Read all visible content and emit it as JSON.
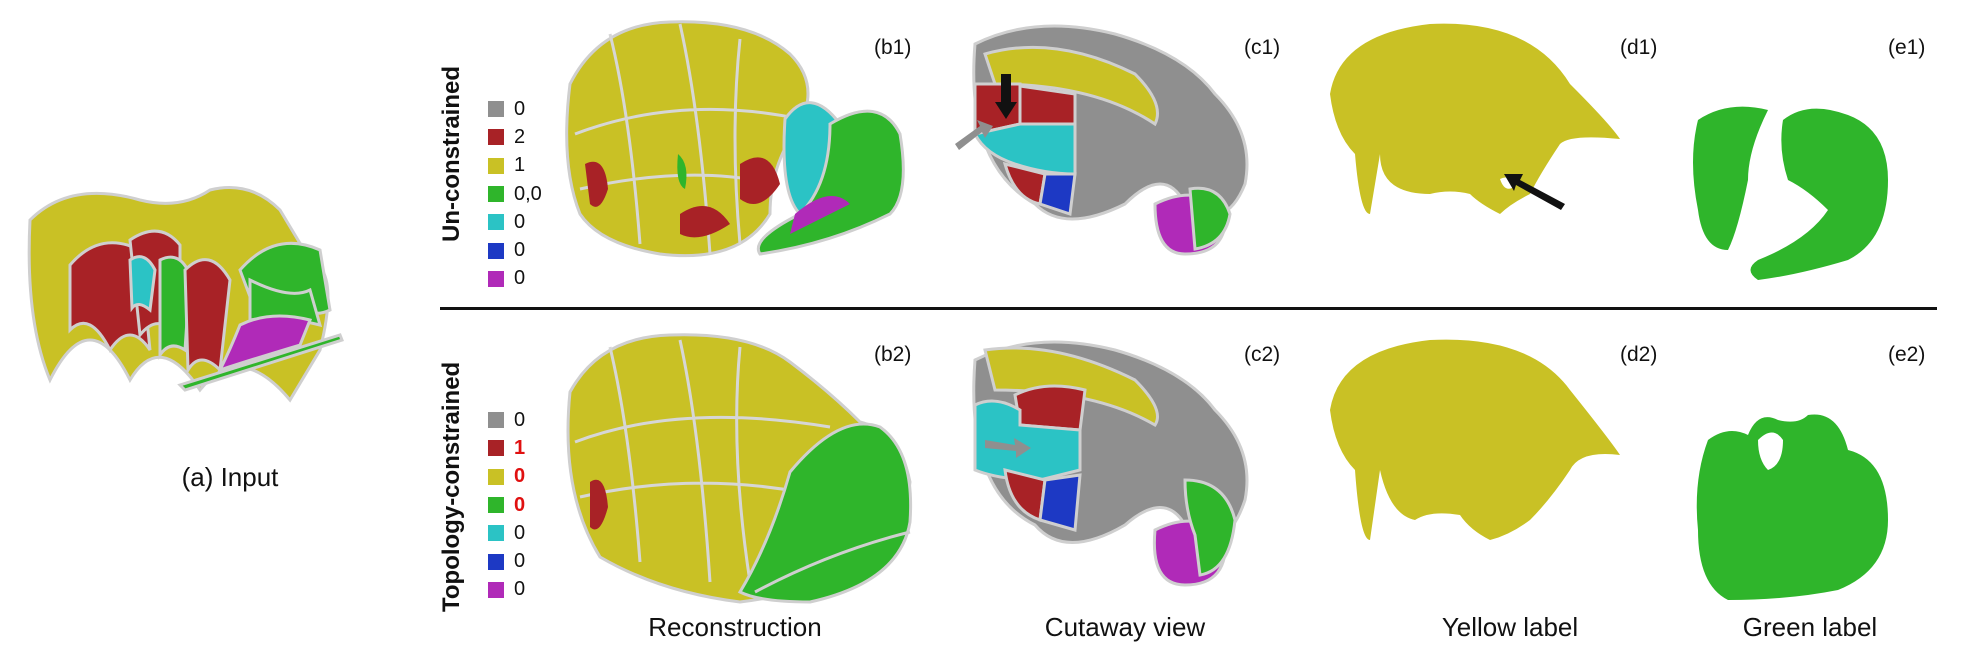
{
  "input_caption": "(a) Input",
  "rows": [
    {
      "label": "Un-constrained",
      "legend": [
        {
          "value": "0",
          "color": "#8c8c8c",
          "highlight": false
        },
        {
          "value": "2",
          "color": "#b02226",
          "highlight": false
        },
        {
          "value": "1",
          "color": "#c4bd1e",
          "highlight": false
        },
        {
          "value": "0,0",
          "color": "#2fb52b",
          "highlight": false
        },
        {
          "value": "0",
          "color": "#26c3c5",
          "highlight": false
        },
        {
          "value": "0",
          "color": "#1d39c4",
          "highlight": false
        },
        {
          "value": "0",
          "color": "#a42bbe",
          "highlight": false
        }
      ],
      "panels": [
        "(b1)",
        "(c1)",
        "(d1)",
        "(e1)"
      ]
    },
    {
      "label": "Topology-constrained",
      "legend": [
        {
          "value": "0",
          "color": "#8c8c8c",
          "highlight": false
        },
        {
          "value": "1",
          "color": "#b02226",
          "highlight": true
        },
        {
          "value": "0",
          "color": "#c4bd1e",
          "highlight": true
        },
        {
          "value": "0",
          "color": "#2fb52b",
          "highlight": true
        },
        {
          "value": "0",
          "color": "#26c3c5",
          "highlight": false
        },
        {
          "value": "0",
          "color": "#1d39c4",
          "highlight": false
        },
        {
          "value": "0",
          "color": "#a42bbe",
          "highlight": false
        }
      ],
      "panels": [
        "(b2)",
        "(c2)",
        "(d2)",
        "(e2)"
      ]
    }
  ],
  "column_captions": [
    "Reconstruction",
    "Cutaway view",
    "Yellow label",
    "Green label"
  ],
  "colors": {
    "yellow": "#c9c125",
    "red": "#a82226",
    "green": "#2fb52b",
    "cyan": "#2bc3c5",
    "blue": "#1d39c4",
    "magenta": "#b02ab8",
    "gray": "#8f8f8f",
    "outline": "#cfcfcf"
  }
}
